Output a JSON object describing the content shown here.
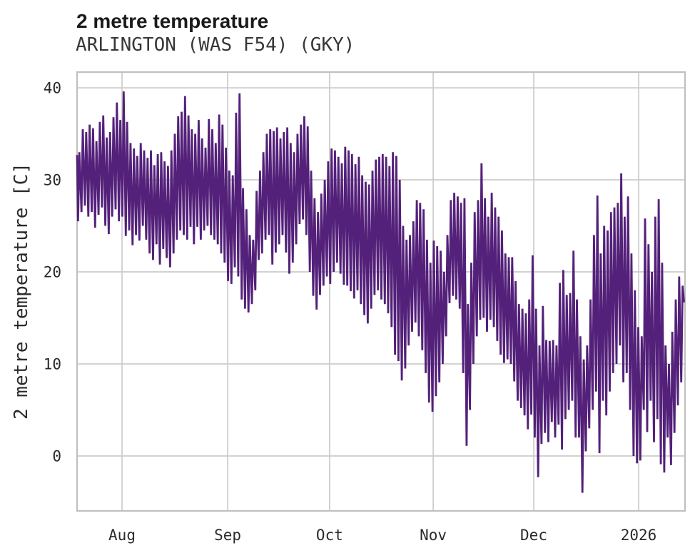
{
  "header": {
    "title": "2 metre temperature",
    "subtitle": "ARLINGTON (WAS F54) (GKY)"
  },
  "chart_data": {
    "type": "line",
    "title": "2 metre temperature",
    "subtitle": "ARLINGTON (WAS F54) (GKY)",
    "xlabel": "",
    "ylabel": "2 metre temperature [C]",
    "unit": "C",
    "line_color": "#54217a",
    "grid_color": "#cccccc",
    "border_color": "#c0c0c0",
    "grid": true,
    "legend": "none",
    "ylim": [
      -5.97,
      41.71
    ],
    "yticks": [
      0,
      10,
      20,
      30,
      40
    ],
    "x_total_days": 178.4,
    "month_ticks": [
      {
        "label": "Aug",
        "day": 13.2
      },
      {
        "label": "Sep",
        "day": 44.2
      },
      {
        "label": "Oct",
        "day": 74.1
      },
      {
        "label": "Nov",
        "day": 104.5
      },
      {
        "label": "Dec",
        "day": 134.0
      },
      {
        "label": "2026",
        "day": 164.8
      }
    ],
    "series": [
      {
        "name": "2 metre temperature",
        "sampling": "daily_min_max_estimated_from_plot",
        "start_value": 32.7,
        "end_value": 16.7,
        "daily_max": [
          33.0,
          35.5,
          35.2,
          36.0,
          35.6,
          34.2,
          36.3,
          37.0,
          34.6,
          35.2,
          36.8,
          38.4,
          36.5,
          39.6,
          36.3,
          34.0,
          33.4,
          32.6,
          34.0,
          33.2,
          32.4,
          33.2,
          31.6,
          32.8,
          33.0,
          32.0,
          31.5,
          33.2,
          35.0,
          36.9,
          37.4,
          39.1,
          37.0,
          35.5,
          35.0,
          36.5,
          34.5,
          33.5,
          36.6,
          35.5,
          34.0,
          37.1,
          36.0,
          33.5,
          31.0,
          30.5,
          37.3,
          39.4,
          29.1,
          26.8,
          24.0,
          23.5,
          28.8,
          31.0,
          33.0,
          35.0,
          35.5,
          35.3,
          35.7,
          34.5,
          35.2,
          35.7,
          34.0,
          33.0,
          35.0,
          36.0,
          36.9,
          35.8,
          31.0,
          28.0,
          26.5,
          28.5,
          30.0,
          32.0,
          33.4,
          33.2,
          32.5,
          31.8,
          33.6,
          33.2,
          32.8,
          31.7,
          32.5,
          30.5,
          29.8,
          29.5,
          31.0,
          32.2,
          32.5,
          32.8,
          32.5,
          31.5,
          33.0,
          32.6,
          30.0,
          25.0,
          23.5,
          24.0,
          25.5,
          27.8,
          27.5,
          26.8,
          23.5,
          21.0,
          23.4,
          22.8,
          22.3,
          20.0,
          24.0,
          27.8,
          28.6,
          28.2,
          27.5,
          28.0,
          16.5,
          21.0,
          26.5,
          27.8,
          31.8,
          28.0,
          26.0,
          28.6,
          27.0,
          26.0,
          24.5,
          22.0,
          21.6,
          21.6,
          19.0,
          16.5,
          16.0,
          15.5,
          17.0,
          21.8,
          16.0,
          12.0,
          16.3,
          12.6,
          12.5,
          12.6,
          12.0,
          18.8,
          20.2,
          17.5,
          17.7,
          22.3,
          17.0,
          13.0,
          10.5,
          12.0,
          17.0,
          24.0,
          28.3,
          22.0,
          25.0,
          24.5,
          26.5,
          27.0,
          27.5,
          30.7,
          26.0,
          28.2,
          22.0,
          18.0,
          14.0,
          13.0,
          25.8,
          23.0,
          20.0,
          26.0,
          27.9,
          21.0,
          12.0,
          10.0,
          13.5,
          17.0,
          19.5,
          18.5
        ],
        "daily_min": [
          25.5,
          26.5,
          27.2,
          26.0,
          26.5,
          24.8,
          26.2,
          27.0,
          25.0,
          24.1,
          26.0,
          26.8,
          25.5,
          26.0,
          23.9,
          24.5,
          22.9,
          24.0,
          23.4,
          25.0,
          23.5,
          22.0,
          21.3,
          23.0,
          20.8,
          22.5,
          21.5,
          20.5,
          22.0,
          23.5,
          24.5,
          24.0,
          23.5,
          24.9,
          23.0,
          24.9,
          23.5,
          24.5,
          25.0,
          24.0,
          23.5,
          23.0,
          22.0,
          21.0,
          19.0,
          18.7,
          20.5,
          19.5,
          17.0,
          16.0,
          15.6,
          16.5,
          18.0,
          21.3,
          22.0,
          23.5,
          24.0,
          20.8,
          22.1,
          23.0,
          24.0,
          22.1,
          19.8,
          21.0,
          23.0,
          25.2,
          25.7,
          24.0,
          20.0,
          17.4,
          15.9,
          17.5,
          18.5,
          19.5,
          18.7,
          20.0,
          21.0,
          19.8,
          18.6,
          18.5,
          17.9,
          17.1,
          18.0,
          16.5,
          15.3,
          14.4,
          16.0,
          17.5,
          18.0,
          17.0,
          16.5,
          15.5,
          14.0,
          11.0,
          10.3,
          8.2,
          9.5,
          12.0,
          13.5,
          14.5,
          13.0,
          11.5,
          9.0,
          5.8,
          4.8,
          6.5,
          8.0,
          10.0,
          13.0,
          16.6,
          17.4,
          17.0,
          16.0,
          9.0,
          1.1,
          5.0,
          10.0,
          13.0,
          14.8,
          15.0,
          13.5,
          14.8,
          14.0,
          12.5,
          11.0,
          10.1,
          10.5,
          10.0,
          8.1,
          6.0,
          5.2,
          4.4,
          2.9,
          4.5,
          2.0,
          -2.3,
          1.3,
          2.5,
          1.5,
          3.7,
          2.0,
          3.4,
          0.7,
          4.0,
          5.0,
          6.0,
          2.0,
          2.0,
          -4.0,
          0.5,
          3.0,
          5.0,
          7.0,
          0.3,
          6.0,
          4.4,
          7.0,
          9.0,
          10.0,
          12.0,
          8.0,
          9.0,
          5.0,
          0.0,
          -0.8,
          -0.5,
          5.0,
          2.6,
          6.0,
          1.5,
          4.0,
          -0.9,
          -1.8,
          2.0,
          -1.0,
          2.5,
          5.5,
          8.0
        ]
      }
    ]
  }
}
